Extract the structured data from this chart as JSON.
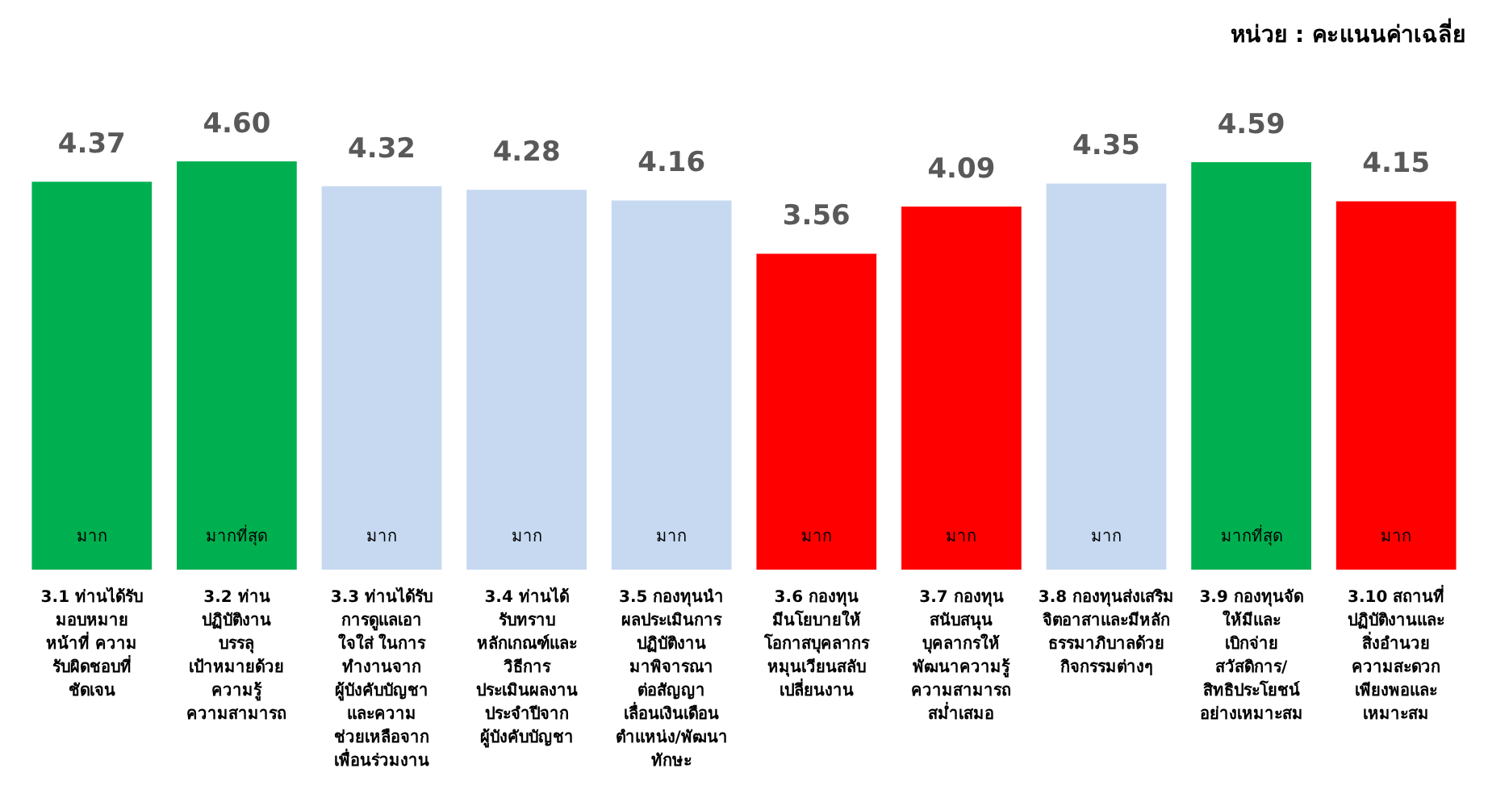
{
  "chart_data": {
    "type": "bar",
    "categories": [
      "3.1 ท่านได้รับ\nมอบหมาย\nหน้าที่ ความ\nรับผิดชอบที่\nชัดเจน",
      "3.2 ท่าน\nปฏิบัติงาน\nบรรลุ\nเป้าหมายด้วย\nความรู้\nความสามารถ",
      "3.3 ท่านได้รับ\nการดูแลเอา\nใจใส่ ในการ\nทำงานจาก\nผู้บังคับบัญชา\nและความ\nช่วยเหลือจาก\nเพื่อนร่วมงาน",
      "3.4 ท่านได้\nรับทราบ\nหลักเกณฑ์และ\nวิธีการ\nประเมินผลงาน\nประจำปีจาก\nผู้บังคับบัญชา",
      "3.5 กองทุนนำ\nผลประเมินการ\nปฏิบัติงาน\nมาพิจารณา\nต่อสัญญา\nเลื่อนเงินเดือน\nตำแหน่ง/พัฒนา\nทักษะ",
      "3.6 กองทุน\nมีนโยบายให้\nโอกาสบุคลากร\nหมุนเวียนสลับ\nเปลี่ยนงาน",
      "3.7 กองทุน\nสนับสนุน\nบุคลากรให้\nพัฒนาความรู้\nความสามารถ\nสม่ำเสมอ",
      "3.8 กองทุนส่งเสริม\nจิตอาสาและมีหลัก\nธรรมาภิบาลด้วย\nกิจกรรมต่างๆ",
      "3.9 กองทุนจัด\nให้มีและ\nเบิกจ่าย\nสวัสดิการ/\nสิทธิประโยชน์\nอย่างเหมาะสม",
      "3.10 สถานที่\nปฏิบัติงานและ\nสิ่งอำนวย\nความสะดวก\nเพียงพอและ\nเหมาะสม"
    ],
    "values": [
      4.37,
      4.6,
      4.32,
      4.28,
      4.16,
      3.56,
      4.09,
      4.35,
      4.59,
      4.15
    ],
    "value_labels": [
      "4.37",
      "4.60",
      "4.32",
      "4.28",
      "4.16",
      "3.56",
      "4.09",
      "4.35",
      "4.59",
      "4.15"
    ],
    "colors": [
      "#00b050",
      "#00b050",
      "#c6d9f1",
      "#c6d9f1",
      "#c6d9f1",
      "#ff0000",
      "#ff0000",
      "#c6d9f1",
      "#00b050",
      "#ff0000"
    ],
    "tick_labels": "x",
    "grid": false,
    "legend": false,
    "annotations": [
      "หน่วย : คะแนนค่าเฉลี่ย",
      "มาก",
      "มากที่สุด",
      "มาก",
      "มาก",
      "มาก",
      "มาก",
      "มาก",
      "มาก",
      "มากที่สุด",
      "มาก"
    ]
  }
}
